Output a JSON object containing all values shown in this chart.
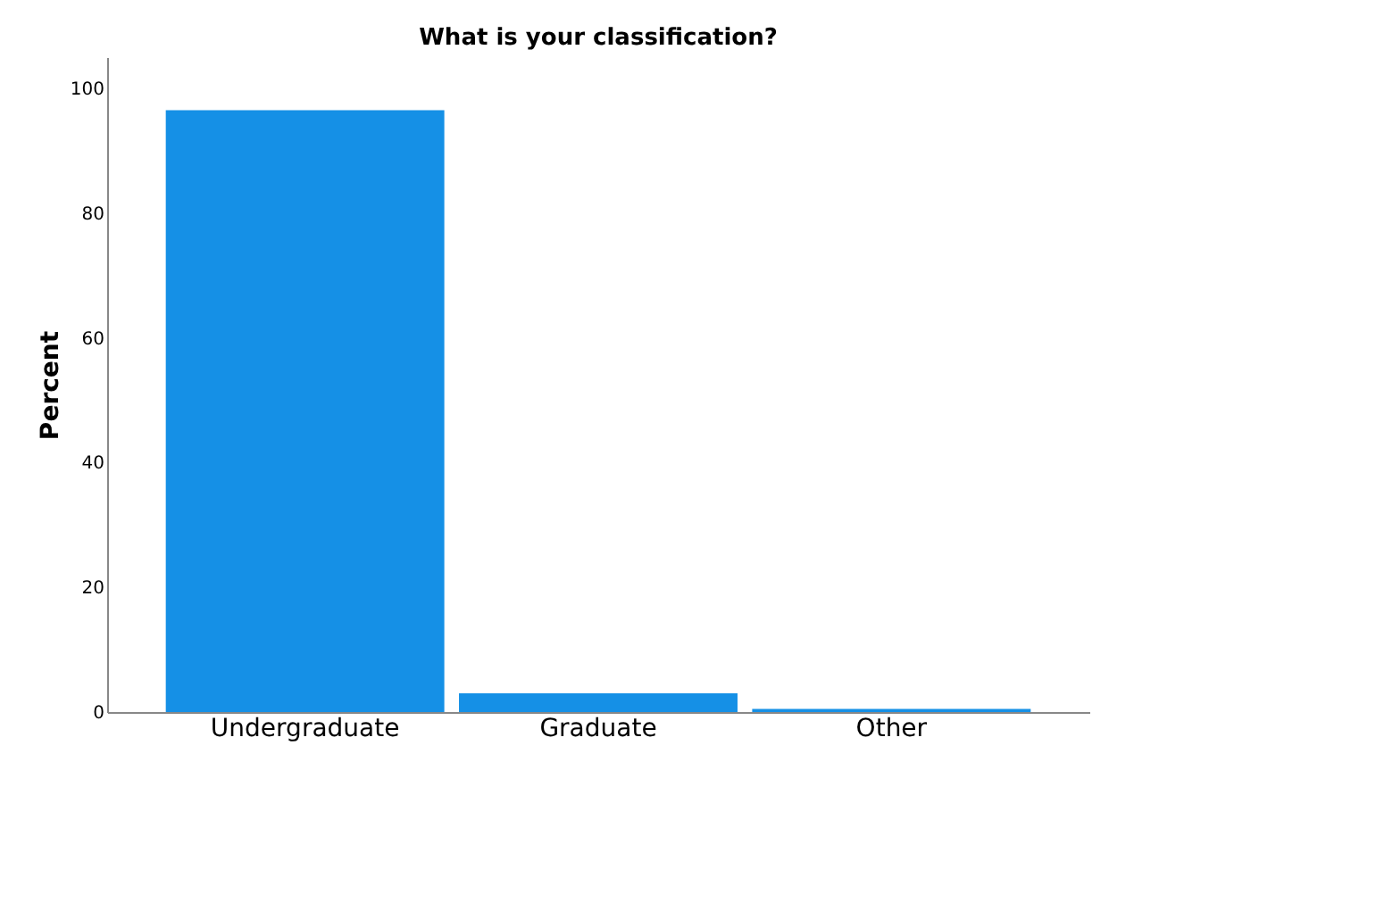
{
  "chart_data": {
    "type": "bar",
    "title": "What is your classification?",
    "ylabel": "Percent",
    "categories": [
      "Undergraduate",
      "Graduate",
      "Other"
    ],
    "values": [
      96.5,
      3,
      0.5
    ],
    "color": "#1590e6",
    "ylim": [
      0,
      105
    ],
    "yticks": [
      0,
      20,
      40,
      60,
      80,
      100
    ],
    "grid": false
  }
}
